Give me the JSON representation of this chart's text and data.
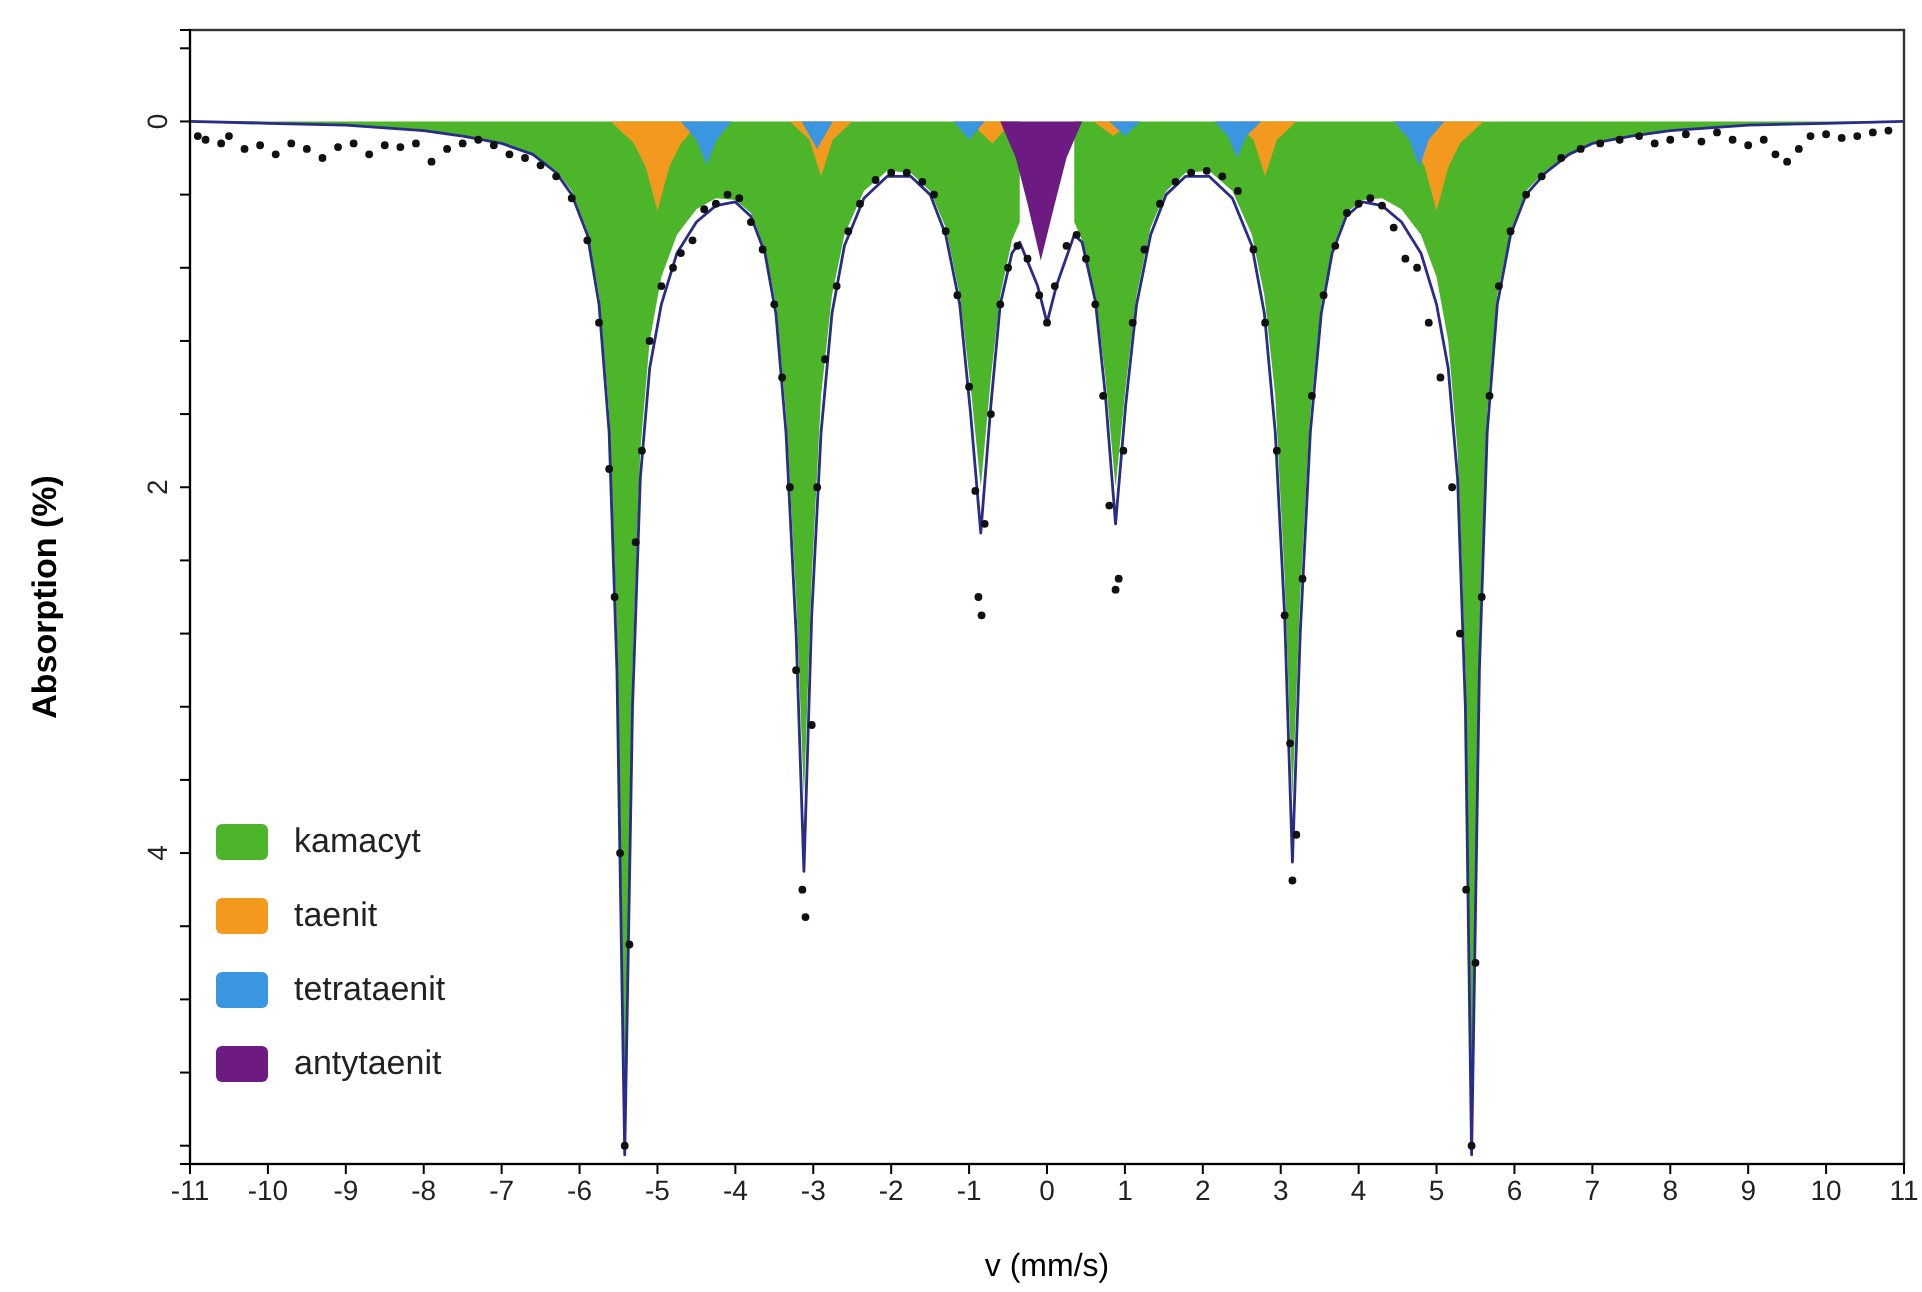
{
  "chart_data": {
    "type": "area",
    "xlabel": "v (mm/s)",
    "ylabel": "Absorption (%)",
    "xlim": [
      -11,
      11
    ],
    "xticks": [
      -11,
      -10,
      -9,
      -8,
      -7,
      -6,
      -5,
      -4,
      -3,
      -2,
      -1,
      0,
      1,
      2,
      3,
      4,
      5,
      6,
      7,
      8,
      9,
      10,
      11
    ],
    "ylim": [
      5.7,
      -0.5
    ],
    "yticks": [
      {
        "value": -0.4,
        "label": null
      },
      0,
      {
        "value": 0.4,
        "label": null
      },
      {
        "value": 0.8,
        "label": null
      },
      {
        "value": 1.2,
        "label": null
      },
      {
        "value": 1.6,
        "label": null
      },
      2,
      {
        "value": 2.4,
        "label": null
      },
      {
        "value": 2.8,
        "label": null
      },
      {
        "value": 3.2,
        "label": null
      },
      {
        "value": 3.6,
        "label": null
      },
      4,
      {
        "value": 4.4,
        "label": null
      },
      {
        "value": 4.8,
        "label": null
      },
      {
        "value": 5.2,
        "label": null
      },
      {
        "value": 5.6,
        "label": null
      }
    ],
    "grid": false,
    "legend": "bottom left",
    "x": [
      -11,
      -10,
      -9,
      -8,
      -7.5,
      -7,
      -6.6,
      -6.3,
      -6.1,
      -5.9,
      -5.75,
      -5.62,
      -5.52,
      -5.42,
      -5.32,
      -5.22,
      -5.1,
      -4.95,
      -4.75,
      -4.5,
      -4.25,
      -4.0,
      -3.8,
      -3.62,
      -3.48,
      -3.35,
      -3.22,
      -3.12,
      -3.02,
      -2.9,
      -2.76,
      -2.6,
      -2.35,
      -2.05,
      -1.75,
      -1.5,
      -1.3,
      -1.12,
      -0.98,
      -0.85,
      -0.72,
      -0.6,
      -0.45,
      -0.35,
      -0.12,
      0,
      0.12,
      0.35,
      0.45,
      0.62,
      0.75,
      0.88,
      1.01,
      1.15,
      1.33,
      1.53,
      1.78,
      2.08,
      2.38,
      2.63,
      2.79,
      2.93,
      3.05,
      3.15,
      3.25,
      3.38,
      3.52,
      3.66,
      3.84,
      4.05,
      4.3,
      4.55,
      4.8,
      5.0,
      5.15,
      5.27,
      5.37,
      5.45,
      5.55,
      5.65,
      5.78,
      5.95,
      6.15,
      6.4,
      6.7,
      7.0,
      7.5,
      8,
      9,
      10,
      11
    ],
    "series": [
      {
        "name": "kamacyt",
        "color": "#4cb52a",
        "values": [
          0,
          0.01,
          0.02,
          0.05,
          0.08,
          0.12,
          0.18,
          0.27,
          0.38,
          0.6,
          0.95,
          1.6,
          2.8,
          5.5,
          3.0,
          1.8,
          1.2,
          0.85,
          0.62,
          0.48,
          0.42,
          0.43,
          0.5,
          0.7,
          1.0,
          1.6,
          2.6,
          3.7,
          2.5,
          1.5,
          0.95,
          0.62,
          0.38,
          0.27,
          0.28,
          0.38,
          0.58,
          0.95,
          1.45,
          2.0,
          1.4,
          0.95,
          0.65,
          0.55,
          null,
          null,
          null,
          0.55,
          0.65,
          0.95,
          1.4,
          2.0,
          1.45,
          0.95,
          0.58,
          0.38,
          0.28,
          0.27,
          0.38,
          0.62,
          0.95,
          1.5,
          2.5,
          3.7,
          2.6,
          1.6,
          1.0,
          0.7,
          0.5,
          0.43,
          0.42,
          0.48,
          0.62,
          0.85,
          1.2,
          1.8,
          3.0,
          5.5,
          2.8,
          1.6,
          0.95,
          0.6,
          0.38,
          0.27,
          0.18,
          0.12,
          0.08,
          0.05,
          0.02,
          0.01,
          0
        ]
      },
      {
        "name": "taenit",
        "color": "#f39a1e",
        "x": [
          -11,
          -5.6,
          -5.3,
          -5.15,
          -5.0,
          -4.85,
          -4.7,
          -4.45,
          -3.3,
          -3.05,
          -2.9,
          -2.75,
          -2.5,
          -1.0,
          -0.7,
          -0.45,
          0.6,
          0.85,
          1.1,
          2.4,
          2.65,
          2.8,
          2.95,
          3.2,
          4.45,
          4.7,
          4.85,
          5.0,
          5.15,
          5.3,
          5.6,
          11
        ],
        "values": [
          0,
          0,
          0.12,
          0.25,
          0.49,
          0.25,
          0.12,
          0,
          0,
          0.1,
          0.3,
          0.1,
          0,
          0,
          0.12,
          0,
          0,
          0.08,
          0,
          0,
          0.1,
          0.3,
          0.1,
          0,
          0,
          0.12,
          0.25,
          0.49,
          0.25,
          0.12,
          0,
          0
        ]
      },
      {
        "name": "tetrataenit",
        "color": "#3a96e0",
        "x": [
          -11,
          -4.7,
          -4.5,
          -4.37,
          -4.24,
          -4.05,
          -3.15,
          -2.95,
          -2.75,
          -1.2,
          -1.0,
          -0.8,
          0.8,
          1.0,
          1.2,
          2.15,
          2.32,
          2.44,
          2.56,
          2.75,
          4.45,
          4.65,
          4.78,
          4.9,
          5.1,
          11
        ],
        "values": [
          0,
          0,
          0.1,
          0.24,
          0.1,
          0,
          0,
          0.15,
          0,
          0,
          0.1,
          0,
          0,
          0.08,
          0,
          0,
          0.08,
          0.2,
          0.08,
          0,
          0,
          0.1,
          0.25,
          0.1,
          0,
          0
        ]
      },
      {
        "name": "antytaenit",
        "color": "#6d1a82",
        "x": [
          -11,
          -0.6,
          -0.4,
          -0.25,
          -0.08,
          0.1,
          0.25,
          0.45,
          11
        ],
        "values": [
          0,
          0,
          0.2,
          0.45,
          0.76,
          0.45,
          0.2,
          0,
          0
        ]
      },
      {
        "type": "line",
        "color": "#2b2b8a",
        "line_style": "solid",
        "values": [
          0,
          0.01,
          0.02,
          0.05,
          0.08,
          0.12,
          0.18,
          0.28,
          0.4,
          0.62,
          1.0,
          1.7,
          3.0,
          5.65,
          3.2,
          1.95,
          1.35,
          1.0,
          0.72,
          0.55,
          0.46,
          0.44,
          0.52,
          0.72,
          1.05,
          1.7,
          2.8,
          4.1,
          2.7,
          1.7,
          1.05,
          0.68,
          0.42,
          0.3,
          0.3,
          0.4,
          0.62,
          1.0,
          1.6,
          2.25,
          1.55,
          1.0,
          0.72,
          0.66,
          0.9,
          1.1,
          0.9,
          0.62,
          0.66,
          0.98,
          1.5,
          2.2,
          1.55,
          1.0,
          0.62,
          0.4,
          0.3,
          0.3,
          0.42,
          0.68,
          1.05,
          1.7,
          2.7,
          4.05,
          2.8,
          1.7,
          1.05,
          0.72,
          0.52,
          0.44,
          0.46,
          0.55,
          0.72,
          1.0,
          1.35,
          1.95,
          3.2,
          5.65,
          3.0,
          1.7,
          1.0,
          0.62,
          0.4,
          0.28,
          0.18,
          0.12,
          0.08,
          0.05,
          0.02,
          0.01,
          0
        ]
      },
      {
        "type": "scatter",
        "color": "#111111",
        "marker": "circle",
        "x": [
          -10.9,
          -10.8,
          -10.6,
          -10.5,
          -10.3,
          -10.1,
          -9.9,
          -9.7,
          -9.5,
          -9.3,
          -9.1,
          -8.9,
          -8.7,
          -8.5,
          -8.3,
          -8.1,
          -7.9,
          -7.7,
          -7.5,
          -7.3,
          -7.1,
          -6.9,
          -6.7,
          -6.5,
          -6.3,
          -6.1,
          -5.9,
          -5.75,
          -5.62,
          -5.55,
          -5.48,
          -5.42,
          -5.36,
          -5.28,
          -5.2,
          -5.1,
          -4.95,
          -4.8,
          -4.7,
          -4.55,
          -4.4,
          -4.25,
          -4.1,
          -3.95,
          -3.8,
          -3.65,
          -3.5,
          -3.4,
          -3.3,
          -3.22,
          -3.14,
          -3.1,
          -3.02,
          -2.95,
          -2.85,
          -2.7,
          -2.55,
          -2.4,
          -2.2,
          -2.0,
          -1.8,
          -1.6,
          -1.45,
          -1.3,
          -1.15,
          -1.0,
          -0.92,
          -0.88,
          -0.84,
          -0.8,
          -0.72,
          -0.6,
          -0.5,
          -0.38,
          -0.25,
          -0.1,
          0,
          0.1,
          0.25,
          0.38,
          0.5,
          0.62,
          0.72,
          0.8,
          0.88,
          0.92,
          0.98,
          1.1,
          1.25,
          1.45,
          1.65,
          1.85,
          2.05,
          2.25,
          2.45,
          2.65,
          2.8,
          2.95,
          3.05,
          3.12,
          3.15,
          3.2,
          3.28,
          3.4,
          3.55,
          3.7,
          3.85,
          4.0,
          4.15,
          4.3,
          4.45,
          4.6,
          4.75,
          4.9,
          5.05,
          5.2,
          5.3,
          5.38,
          5.45,
          5.5,
          5.58,
          5.68,
          5.8,
          5.95,
          6.15,
          6.35,
          6.6,
          6.85,
          7.1,
          7.35,
          7.6,
          7.8,
          8.0,
          8.2,
          8.4,
          8.6,
          8.8,
          9.0,
          9.2,
          9.35,
          9.5,
          9.65,
          9.8,
          10.0,
          10.2,
          10.4,
          10.6,
          10.8
        ],
        "values": [
          0.08,
          0.1,
          0.12,
          0.08,
          0.15,
          0.13,
          0.18,
          0.12,
          0.15,
          0.2,
          0.14,
          0.12,
          0.18,
          0.13,
          0.14,
          0.12,
          0.22,
          0.15,
          0.12,
          0.1,
          0.13,
          0.18,
          0.2,
          0.24,
          0.3,
          0.42,
          0.65,
          1.1,
          1.9,
          2.6,
          4.0,
          5.6,
          4.5,
          2.3,
          1.8,
          1.2,
          0.9,
          0.8,
          0.72,
          0.65,
          0.48,
          0.45,
          0.4,
          0.42,
          0.55,
          0.7,
          1.0,
          1.4,
          2.0,
          3.0,
          4.2,
          4.35,
          3.3,
          2.0,
          1.3,
          0.9,
          0.6,
          0.45,
          0.32,
          0.28,
          0.28,
          0.33,
          0.4,
          0.6,
          0.95,
          1.45,
          2.02,
          2.6,
          2.7,
          2.2,
          1.6,
          1.0,
          0.8,
          0.68,
          0.75,
          0.95,
          1.1,
          0.9,
          0.68,
          0.62,
          0.75,
          1.0,
          1.5,
          2.1,
          2.56,
          2.5,
          1.8,
          1.1,
          0.7,
          0.45,
          0.33,
          0.28,
          0.27,
          0.3,
          0.38,
          0.7,
          1.1,
          1.8,
          2.7,
          3.4,
          4.15,
          3.9,
          2.5,
          1.5,
          0.95,
          0.68,
          0.5,
          0.45,
          0.42,
          0.46,
          0.58,
          0.75,
          0.8,
          1.1,
          1.4,
          2.0,
          2.8,
          4.2,
          5.6,
          4.6,
          2.6,
          1.5,
          0.9,
          0.6,
          0.4,
          0.3,
          0.2,
          0.15,
          0.12,
          0.1,
          0.08,
          0.12,
          0.1,
          0.07,
          0.11,
          0.06,
          0.1,
          0.13,
          0.1,
          0.18,
          0.22,
          0.15,
          0.08,
          0.07,
          0.09,
          0.08,
          0.06,
          0.05
        ]
      }
    ]
  }
}
